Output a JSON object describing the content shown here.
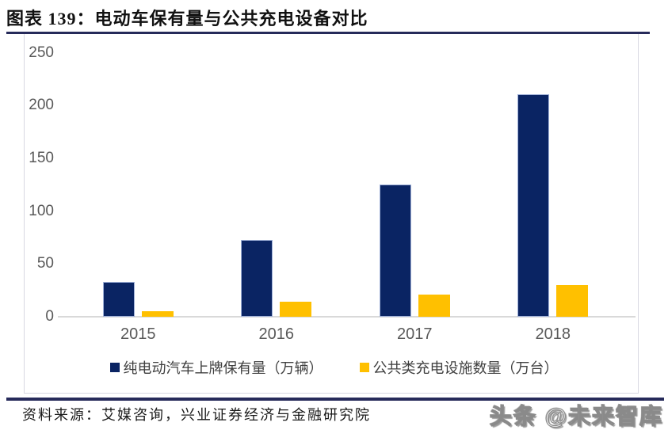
{
  "header": {
    "title": "图表 139：电动车保有量与公共充电设备对比"
  },
  "chart_data": {
    "type": "bar",
    "categories": [
      "2015",
      "2016",
      "2017",
      "2018"
    ],
    "series": [
      {
        "name": "纯电动汽车上牌保有量（万辆）",
        "color": "#0a2463",
        "values": [
          33,
          73,
          125,
          211
        ]
      },
      {
        "name": "公共类充电设施数量（万台）",
        "color": "#ffc000",
        "values": [
          5,
          14,
          21,
          30
        ]
      }
    ],
    "title": "电动车保有量与公共充电设备对比",
    "xlabel": "",
    "ylabel": "",
    "ylim": [
      0,
      250
    ],
    "yticks": [
      0,
      50,
      100,
      150,
      200,
      250
    ],
    "grid": false,
    "legend_position": "bottom"
  },
  "footer": {
    "source": "资料来源：艾媒咨询，兴业证券经济与金融研究院",
    "watermark": "头条 @未来智库"
  },
  "colors": {
    "rule_navy": "#262a5a",
    "axis_text": "#595959",
    "frame_border": "#d8d8e2"
  }
}
